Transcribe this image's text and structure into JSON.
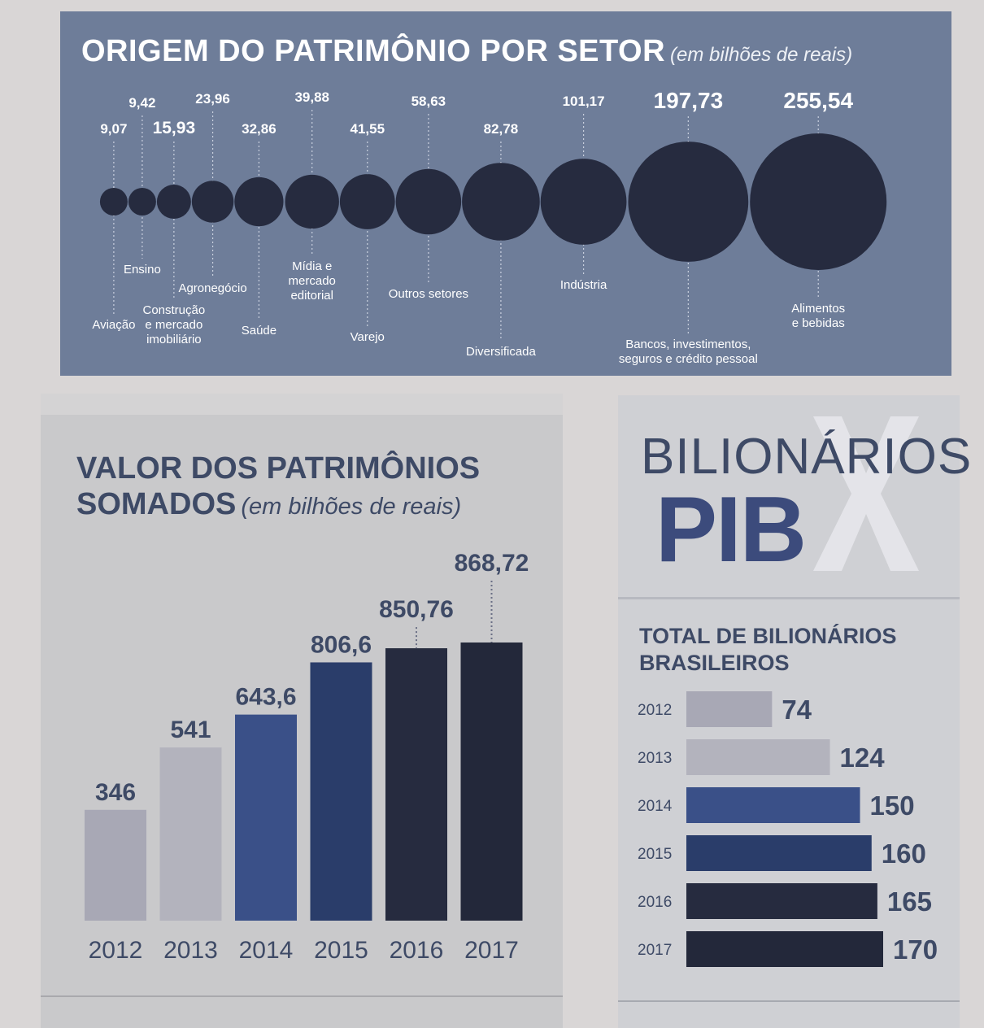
{
  "colors": {
    "bubble_panel_bg": "#6e7d99",
    "bubble_fill": "#262b3f",
    "stem": "#c9d0de",
    "light_text": "#ffffff",
    "navy_text": "#3e4a66",
    "bar_2012": "#a8a8b5",
    "bar_2013": "#b3b3bd",
    "bar_2014": "#3a5088",
    "bar_2015": "#2a3d6a",
    "bar_2016": "#262b3f",
    "bar_2017": "#23283a"
  },
  "bubble_chart": {
    "title": "ORIGEM DO PATRIMÔNIO POR SETOR",
    "subtitle": "(em bilhões de reais)"
  },
  "bar_chart": {
    "title_line1": "VALOR DOS PATRIMÔNIOS",
    "title_line2": "SOMADOS",
    "subtitle": "(em bilhões de reais)"
  },
  "pib_header": {
    "line1": "BILIONÁRIOS",
    "line2": "PIB",
    "icon": "x-icon"
  },
  "hbar_chart": {
    "title_line1": "TOTAL DE BILIONÁRIOS",
    "title_line2": "BRASILEIROS"
  },
  "chart_data": [
    {
      "type": "scatter",
      "title": "ORIGEM DO PATRIMÔNIO POR SETOR",
      "subtitle": "(em bilhões de reais)",
      "categories": [
        "Aviação",
        "Ensino",
        "Construção e mercado imobiliário",
        "Agronegócio",
        "Saúde",
        "Mídia e mercado editorial",
        "Varejo",
        "Outros setores",
        "Diversificada",
        "Indústria",
        "Bancos, investimentos, seguros e crédito pessoal",
        "Alimentos e bebidas"
      ],
      "value_labels": [
        "9,07",
        "9,42",
        "15,93",
        "23,96",
        "32,86",
        "39,88",
        "41,55",
        "58,63",
        "82,78",
        "101,17",
        "197,73",
        "255,54"
      ],
      "values": [
        9.07,
        9.42,
        15.93,
        23.96,
        32.86,
        39.88,
        41.55,
        58.63,
        82.78,
        101.17,
        197.73,
        255.54
      ],
      "sector_lines": [
        [
          "Aviação"
        ],
        [
          "Ensino"
        ],
        [
          "Construção",
          "e mercado",
          "imobiliário"
        ],
        [
          "Agronegócio"
        ],
        [
          "Saúde"
        ],
        [
          "Mídia e",
          "mercado",
          "editorial"
        ],
        [
          "Varejo"
        ],
        [
          "Outros setores"
        ],
        [
          "Diversificada"
        ],
        [
          "Indústria"
        ],
        [
          "Bancos, investimentos,",
          "seguros e crédito pessoal"
        ],
        [
          "Alimentos",
          "e bebidas"
        ]
      ]
    },
    {
      "type": "bar",
      "title": "VALOR DOS PATRIMÔNIOS SOMADOS",
      "subtitle": "(em bilhões de reais)",
      "categories": [
        "2012",
        "2013",
        "2014",
        "2015",
        "2016",
        "2017"
      ],
      "values": [
        346,
        541,
        643.6,
        806.6,
        850.76,
        868.72
      ],
      "value_labels": [
        "346",
        "541",
        "643,6",
        "806,6",
        "850,76",
        "868,72"
      ],
      "ylim": [
        0,
        868.72
      ],
      "grid": false
    },
    {
      "type": "bar",
      "orientation": "horizontal",
      "title": "TOTAL DE BILIONÁRIOS BRASILEIROS",
      "categories": [
        "2012",
        "2013",
        "2014",
        "2015",
        "2016",
        "2017"
      ],
      "values": [
        74,
        124,
        150,
        160,
        165,
        170
      ],
      "value_labels": [
        "74",
        "124",
        "150",
        "160",
        "165",
        "170"
      ],
      "grid": false
    }
  ]
}
